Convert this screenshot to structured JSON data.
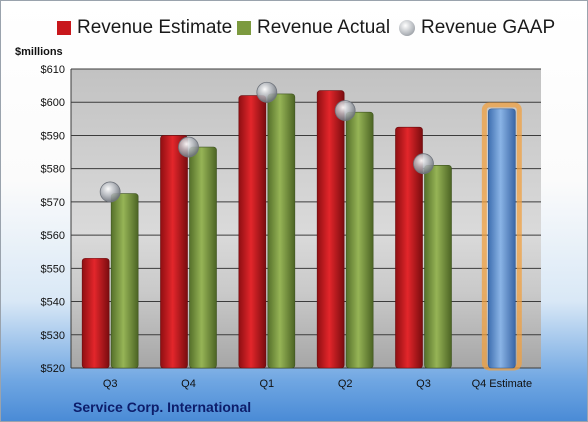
{
  "chart_data": {
    "type": "bar",
    "unit": "$millions",
    "categories": [
      "Q3",
      "Q4",
      "Q1",
      "Q2",
      "Q3",
      "Q4 Estimate"
    ],
    "series": [
      {
        "name": "Revenue Estimate",
        "kind": "bar",
        "color": "#c8171c",
        "values": [
          553,
          590,
          602,
          603.5,
          592.5,
          null
        ]
      },
      {
        "name": "Revenue Actual",
        "kind": "bar",
        "color": "#7c9a3f",
        "values": [
          572.5,
          586.5,
          602.5,
          597,
          581,
          null
        ]
      },
      {
        "name": "Revenue GAAP",
        "kind": "marker",
        "color": "#b4b8bd",
        "values": [
          573,
          586.5,
          603,
          597.5,
          581.5,
          null
        ]
      },
      {
        "name": "Q4 Estimate",
        "kind": "bar",
        "color": "#5d8fcf",
        "highlight": "#f0a040",
        "values": [
          null,
          null,
          null,
          null,
          null,
          598
        ]
      }
    ],
    "legend": [
      "Revenue Estimate",
      "Revenue Actual",
      "Revenue GAAP"
    ],
    "yticks": [
      "$520",
      "$530",
      "$540",
      "$550",
      "$560",
      "$570",
      "$580",
      "$590",
      "$600",
      "$610"
    ],
    "ylim": [
      520,
      610
    ],
    "grid": true,
    "legend_position": "top",
    "footer": "Service Corp. International"
  }
}
